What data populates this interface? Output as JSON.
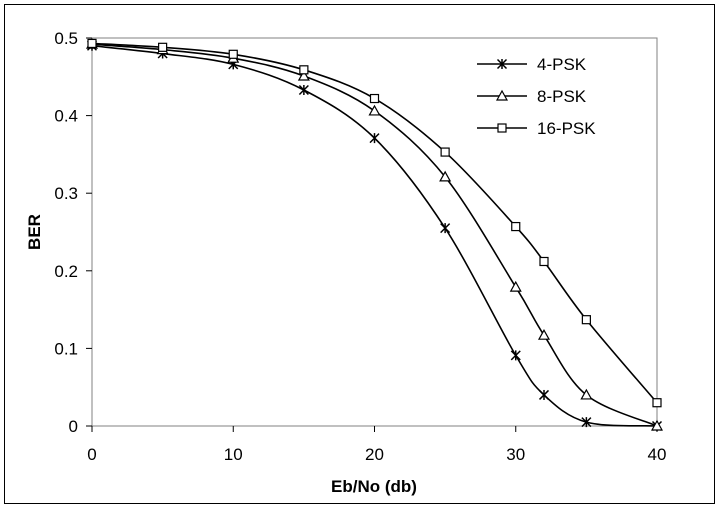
{
  "chart_data": {
    "type": "line",
    "xlabel": "Eb/No (db)",
    "ylabel": "BER",
    "xlim": [
      0,
      40
    ],
    "ylim": [
      0,
      0.5
    ],
    "xticks": [
      "0",
      "10",
      "20",
      "30",
      "40"
    ],
    "yticks": [
      "0",
      "0.1",
      "0.2",
      "0.3",
      "0.4",
      "0.5"
    ],
    "grid": false,
    "legend_position": "top-right",
    "series": [
      {
        "name": "4-PSK",
        "marker": "star",
        "x": [
          0,
          5,
          10,
          15,
          20,
          25,
          30,
          32,
          35,
          40
        ],
        "y": [
          0.49,
          0.48,
          0.466,
          0.433,
          0.371,
          0.255,
          0.091,
          0.04,
          0.005,
          0.0
        ]
      },
      {
        "name": "8-PSK",
        "marker": "triangle",
        "x": [
          0,
          5,
          10,
          15,
          20,
          25,
          30,
          32,
          35,
          40
        ],
        "y": [
          0.492,
          0.485,
          0.474,
          0.451,
          0.406,
          0.321,
          0.179,
          0.117,
          0.04,
          0.0
        ]
      },
      {
        "name": "16-PSK",
        "marker": "square",
        "x": [
          0,
          5,
          10,
          15,
          20,
          25,
          30,
          32,
          35,
          40
        ],
        "y": [
          0.493,
          0.488,
          0.479,
          0.459,
          0.422,
          0.353,
          0.257,
          0.212,
          0.137,
          0.03
        ]
      }
    ]
  }
}
